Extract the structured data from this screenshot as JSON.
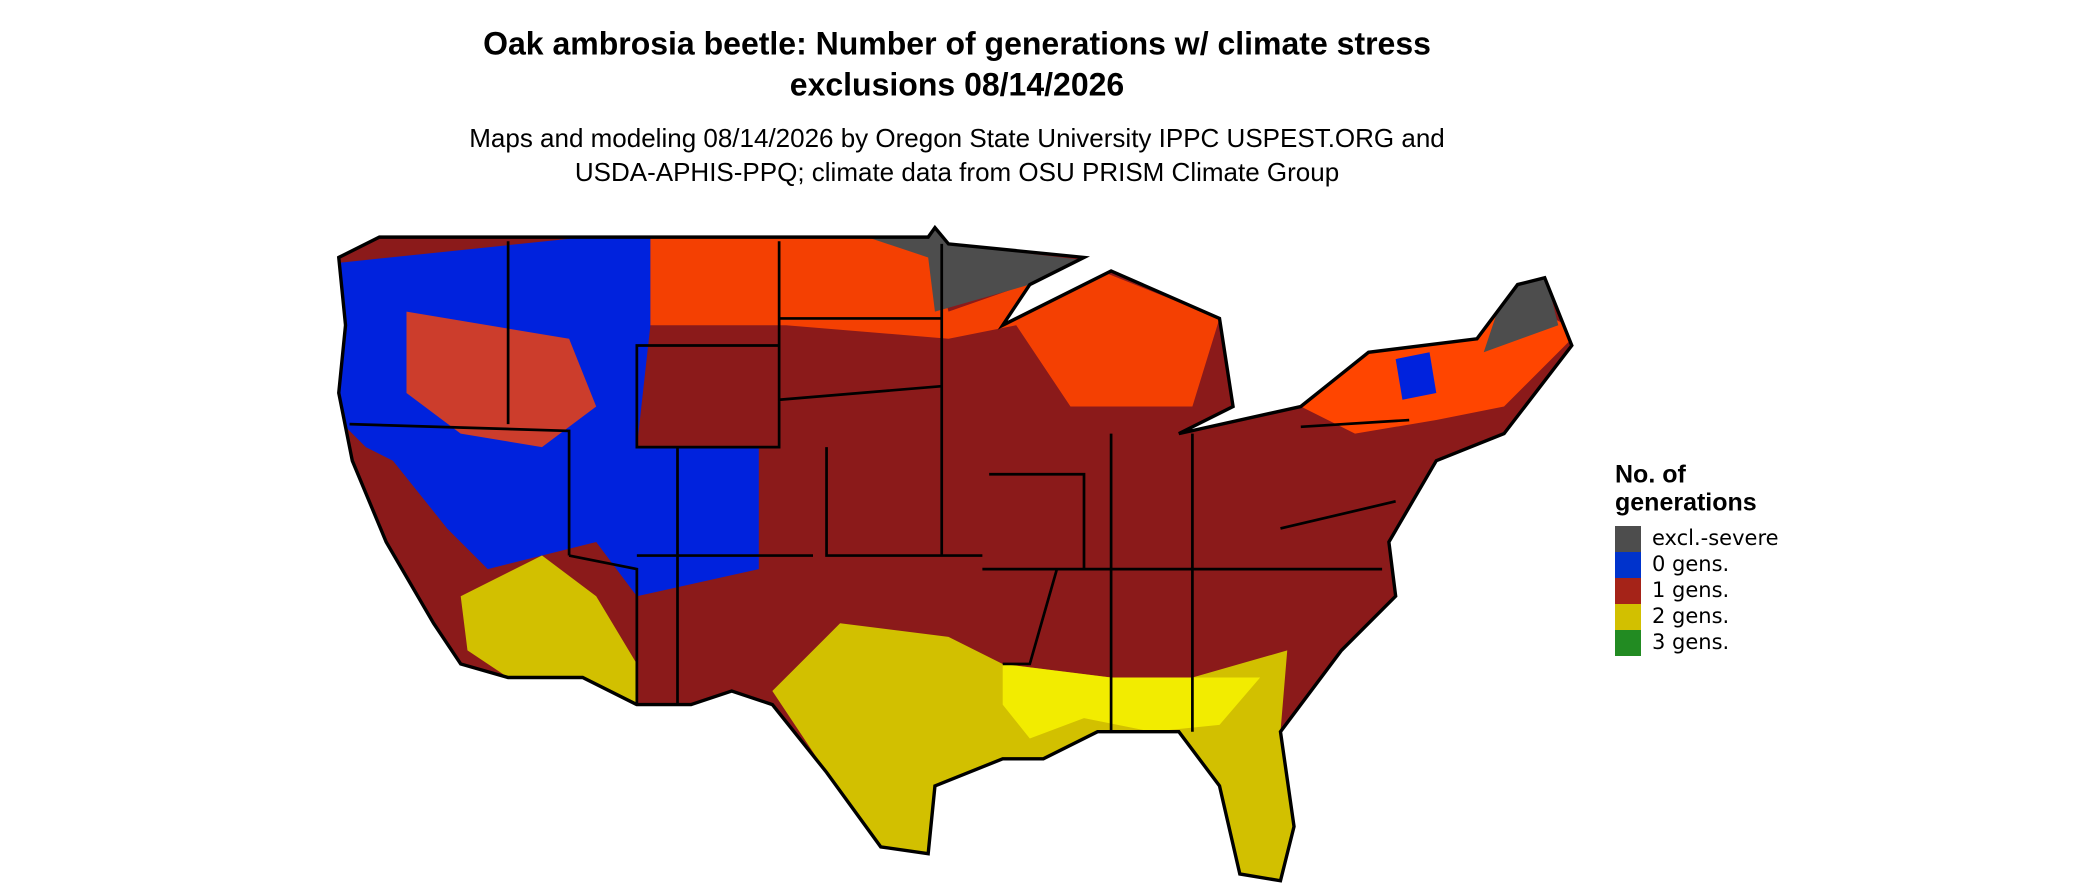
{
  "header": {
    "title_lines": [
      "Oak ambrosia beetle: Number of generations w/ climate stress",
      "exclusions 08/14/2026"
    ],
    "subtitle_lines": [
      "Maps and modeling 08/14/2026 by Oregon State University IPPC USPEST.ORG and",
      "USDA-APHIS-PPQ; climate data from OSU PRISM Climate Group"
    ]
  },
  "legend": {
    "title_lines": [
      "No. of",
      "generations"
    ],
    "items": [
      {
        "label": "excl.-severe",
        "color": "#4d4d4d"
      },
      {
        "label": "0 gens.",
        "color": "#0033cc"
      },
      {
        "label": "1 gens.",
        "color": "#a52318"
      },
      {
        "label": "2 gens.",
        "color": "#d2c000"
      },
      {
        "label": "3 gens.",
        "color": "#228b22"
      }
    ]
  }
}
